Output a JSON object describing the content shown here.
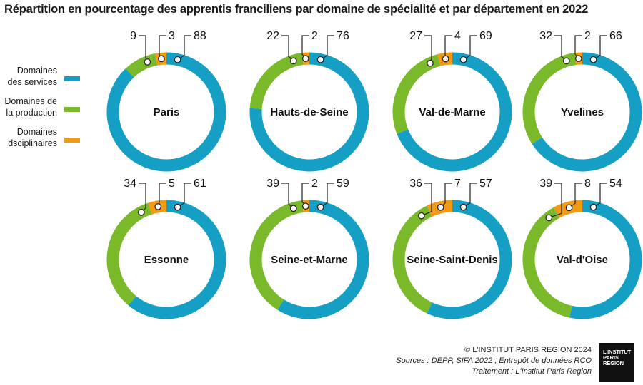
{
  "header": {
    "title": "Répartition en pourcentage des apprentis franciliens par domaine de spécialité et par département en 2022"
  },
  "footer": {
    "copyright": "© L'INSTITUT PARIS REGION 2024",
    "sources": "Sources : DEPP, SIFA 2022 ; Entrepôt de données RCO",
    "treatment": "Traitement : L'Institut Paris Region"
  },
  "logo": {
    "line1": "L'INSTITUT",
    "line2": "PARIS",
    "line3": "REGION"
  },
  "chart_data": {
    "type": "pie",
    "variant": "donut-small-multiples",
    "title": "Répartition en pourcentage des apprentis franciliens par domaine de spécialité et par département en 2022",
    "legend_position": "left",
    "series": [
      {
        "key": "services",
        "name": "Domaines des services",
        "label_lines": [
          "Domaines",
          "des services"
        ],
        "color": "#159fc4"
      },
      {
        "key": "production",
        "name": "Domaines de la production",
        "label_lines": [
          "Domaines de",
          "la production"
        ],
        "color": "#7ab929"
      },
      {
        "key": "disciplinaires",
        "name": "Domaines dsciplinaires",
        "label_lines": [
          "Domaines",
          "dsciplinaires"
        ],
        "color": "#f39a15"
      }
    ],
    "categories": [
      "Paris",
      "Hauts-de-Seine",
      "Val-de-Marne",
      "Yvelines",
      "Essonne",
      "Seine-et-Marne",
      "Seine-Saint-Denis",
      "Val-d'Oise"
    ],
    "values": {
      "services": [
        88,
        76,
        69,
        66,
        61,
        59,
        57,
        54
      ],
      "production": [
        9,
        22,
        27,
        32,
        34,
        39,
        36,
        39
      ],
      "disciplinaires": [
        3,
        2,
        4,
        2,
        5,
        2,
        7,
        8
      ]
    },
    "unit": "%"
  }
}
